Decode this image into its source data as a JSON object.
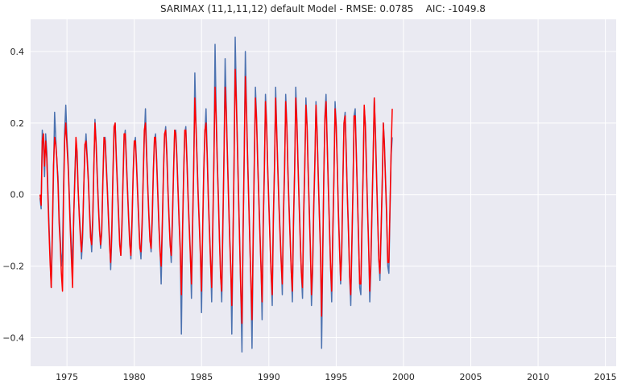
{
  "chart_data": {
    "type": "line",
    "title": "SARIMAX (11,1,11,12) default Model - RMSE: 0.0785    AIC: -1049.8",
    "xlabel": "",
    "ylabel": "",
    "xlim": [
      1972.3,
      2015.8
    ],
    "ylim": [
      -0.48,
      0.49
    ],
    "x_ticks": [
      1975,
      1980,
      1985,
      1990,
      1995,
      2000,
      2005,
      2010,
      2015
    ],
    "x_tick_labels": [
      "1975",
      "1980",
      "1985",
      "1990",
      "1995",
      "2000",
      "2005",
      "2010",
      "2015"
    ],
    "y_ticks": [
      -0.4,
      -0.2,
      0.0,
      0.2,
      0.4
    ],
    "y_tick_labels": [
      "−0.4",
      "−0.2",
      "0.0",
      "0.2",
      "0.4"
    ],
    "grid": true,
    "legend": "none",
    "background": "#eaeaf2",
    "x_start": 1973.0,
    "x_step": 0.08333,
    "series": [
      {
        "color": "#4c72b0",
        "values": [
          -0.01,
          -0.04,
          0.18,
          0.14,
          0.05,
          0.17,
          0.12,
          0.02,
          -0.08,
          -0.17,
          -0.26,
          -0.12,
          0.05,
          0.23,
          0.16,
          0.09,
          0.05,
          -0.06,
          -0.12,
          -0.2,
          -0.16,
          0.02,
          0.18,
          0.25,
          0.16,
          0.1,
          0.01,
          -0.08,
          -0.14,
          -0.2,
          -0.07,
          0.06,
          0.14,
          0.09,
          0.01,
          -0.05,
          -0.1,
          -0.18,
          -0.12,
          0.02,
          0.12,
          0.17,
          0.11,
          0.05,
          -0.03,
          -0.1,
          -0.16,
          -0.08,
          0.07,
          0.21,
          0.15,
          0.06,
          -0.02,
          -0.09,
          -0.15,
          -0.11,
          0.03,
          0.14,
          0.16,
          0.09,
          0.02,
          -0.06,
          -0.12,
          -0.21,
          -0.12,
          0.05,
          0.17,
          0.2,
          0.11,
          0.03,
          -0.05,
          -0.13,
          -0.17,
          -0.1,
          0.04,
          0.15,
          0.18,
          0.1,
          0.02,
          -0.06,
          -0.12,
          -0.18,
          -0.09,
          0.05,
          0.14,
          0.16,
          0.09,
          0.01,
          -0.07,
          -0.14,
          -0.18,
          -0.1,
          0.04,
          0.16,
          0.24,
          0.12,
          0.03,
          -0.05,
          -0.12,
          -0.16,
          -0.08,
          0.06,
          0.15,
          0.17,
          0.1,
          0.01,
          -0.08,
          -0.15,
          -0.25,
          -0.1,
          0.05,
          0.16,
          0.19,
          0.12,
          0.02,
          -0.06,
          -0.13,
          -0.19,
          -0.09,
          0.05,
          0.17,
          0.18,
          0.11,
          0.02,
          -0.07,
          -0.15,
          -0.39,
          -0.12,
          0.05,
          0.17,
          0.19,
          0.1,
          0.0,
          -0.08,
          -0.16,
          -0.29,
          -0.1,
          0.07,
          0.34,
          0.2,
          0.1,
          0.0,
          -0.08,
          -0.16,
          -0.33,
          -0.11,
          0.06,
          0.17,
          0.24,
          0.12,
          0.0,
          -0.09,
          -0.18,
          -0.3,
          -0.1,
          0.09,
          0.42,
          0.24,
          0.1,
          0.0,
          -0.12,
          -0.22,
          -0.3,
          -0.1,
          0.1,
          0.38,
          0.25,
          0.12,
          0.0,
          -0.11,
          -0.2,
          -0.39,
          -0.15,
          0.08,
          0.44,
          0.28,
          0.14,
          0.0,
          -0.13,
          -0.28,
          -0.44,
          -0.12,
          0.1,
          0.4,
          0.26,
          0.12,
          0.0,
          -0.12,
          -0.25,
          -0.43,
          -0.15,
          0.08,
          0.3,
          0.22,
          0.1,
          0.0,
          -0.1,
          -0.2,
          -0.35,
          -0.1,
          0.06,
          0.28,
          0.2,
          0.08,
          -0.02,
          -0.12,
          -0.22,
          -0.31,
          -0.08,
          0.07,
          0.3,
          0.18,
          0.08,
          -0.02,
          -0.1,
          -0.18,
          -0.28,
          -0.07,
          0.06,
          0.28,
          0.2,
          0.07,
          -0.03,
          -0.12,
          -0.22,
          -0.3,
          -0.09,
          0.06,
          0.3,
          0.21,
          0.09,
          -0.02,
          -0.12,
          -0.22,
          -0.29,
          -0.07,
          0.07,
          0.27,
          0.2,
          0.08,
          -0.03,
          -0.14,
          -0.31,
          -0.22,
          -0.05,
          0.08,
          0.26,
          0.18,
          0.06,
          -0.05,
          -0.15,
          -0.43,
          -0.18,
          0.04,
          0.22,
          0.28,
          0.15,
          0.03,
          -0.08,
          -0.2,
          -0.3,
          -0.12,
          0.04,
          0.26,
          0.2,
          0.08,
          -0.04,
          -0.14,
          -0.25,
          -0.17,
          0.03,
          0.2,
          0.23,
          0.12,
          0.0,
          -0.1,
          -0.23,
          -0.31,
          -0.15,
          0.02,
          0.22,
          0.24,
          0.12,
          0.0,
          -0.12,
          -0.26,
          -0.28,
          -0.1,
          0.05,
          0.24,
          0.2,
          0.08,
          -0.04,
          -0.14,
          -0.3,
          -0.2,
          -0.05,
          0.1,
          0.27,
          0.18,
          0.06,
          -0.06,
          -0.18,
          -0.24,
          -0.12,
          0.02,
          0.2,
          0.15,
          0.05,
          -0.05,
          -0.2,
          -0.22,
          -0.05,
          0.11,
          0.16
        ]
      },
      {
        "color": "#ff0000",
        "values": [
          0.0,
          -0.03,
          0.15,
          0.17,
          0.08,
          0.15,
          0.1,
          0.0,
          -0.1,
          -0.19,
          -0.26,
          -0.1,
          0.08,
          0.16,
          0.14,
          0.1,
          0.03,
          -0.08,
          -0.14,
          -0.22,
          -0.27,
          0.0,
          0.15,
          0.2,
          0.14,
          0.08,
          0.0,
          -0.1,
          -0.18,
          -0.26,
          -0.06,
          0.04,
          0.16,
          0.12,
          0.02,
          -0.06,
          -0.12,
          -0.16,
          -0.1,
          0.02,
          0.14,
          0.15,
          0.1,
          0.04,
          -0.04,
          -0.12,
          -0.14,
          -0.06,
          0.08,
          0.2,
          0.14,
          0.05,
          -0.03,
          -0.1,
          -0.14,
          -0.1,
          0.04,
          0.16,
          0.15,
          0.08,
          0.01,
          -0.07,
          -0.14,
          -0.19,
          -0.1,
          0.06,
          0.19,
          0.2,
          0.1,
          0.02,
          -0.06,
          -0.14,
          -0.17,
          -0.08,
          0.05,
          0.17,
          0.17,
          0.09,
          0.01,
          -0.07,
          -0.14,
          -0.17,
          -0.07,
          0.06,
          0.15,
          0.15,
          0.08,
          0.0,
          -0.08,
          -0.15,
          -0.16,
          -0.08,
          0.05,
          0.18,
          0.2,
          0.11,
          0.02,
          -0.06,
          -0.13,
          -0.15,
          -0.06,
          0.07,
          0.16,
          0.16,
          0.09,
          0.0,
          -0.09,
          -0.16,
          -0.2,
          -0.08,
          0.06,
          0.17,
          0.18,
          0.11,
          0.01,
          -0.07,
          -0.14,
          -0.17,
          -0.07,
          0.06,
          0.18,
          0.17,
          0.1,
          0.01,
          -0.08,
          -0.16,
          -0.28,
          -0.1,
          0.06,
          0.18,
          0.18,
          0.09,
          -0.01,
          -0.09,
          -0.17,
          -0.25,
          -0.08,
          0.08,
          0.27,
          0.19,
          0.09,
          -0.01,
          -0.09,
          -0.17,
          -0.27,
          -0.09,
          0.07,
          0.18,
          0.2,
          0.11,
          -0.01,
          -0.1,
          -0.19,
          -0.26,
          -0.08,
          0.1,
          0.3,
          0.22,
          0.09,
          -0.01,
          -0.13,
          -0.23,
          -0.27,
          -0.08,
          0.11,
          0.3,
          0.23,
          0.11,
          -0.01,
          -0.12,
          -0.21,
          -0.31,
          -0.13,
          0.09,
          0.35,
          0.26,
          0.13,
          -0.01,
          -0.14,
          -0.27,
          -0.36,
          -0.1,
          0.11,
          0.33,
          0.24,
          0.11,
          -0.01,
          -0.13,
          -0.24,
          -0.35,
          -0.12,
          0.09,
          0.27,
          0.21,
          0.09,
          -0.01,
          -0.11,
          -0.21,
          -0.3,
          -0.08,
          0.07,
          0.26,
          0.19,
          0.07,
          -0.03,
          -0.13,
          -0.22,
          -0.28,
          -0.06,
          0.08,
          0.27,
          0.17,
          0.07,
          -0.03,
          -0.11,
          -0.19,
          -0.25,
          -0.05,
          0.07,
          0.26,
          0.19,
          0.06,
          -0.04,
          -0.13,
          -0.22,
          -0.27,
          -0.07,
          0.07,
          0.27,
          0.2,
          0.08,
          -0.03,
          -0.13,
          -0.22,
          -0.26,
          -0.05,
          0.08,
          0.25,
          0.19,
          0.07,
          -0.04,
          -0.15,
          -0.28,
          -0.2,
          -0.03,
          0.09,
          0.25,
          0.17,
          0.05,
          -0.06,
          -0.16,
          -0.34,
          -0.16,
          0.05,
          0.21,
          0.26,
          0.14,
          0.02,
          -0.09,
          -0.2,
          -0.27,
          -0.1,
          0.05,
          0.24,
          0.19,
          0.07,
          -0.05,
          -0.15,
          -0.24,
          -0.15,
          0.04,
          0.2,
          0.22,
          0.11,
          -0.01,
          -0.11,
          -0.23,
          -0.28,
          -0.13,
          0.03,
          0.22,
          0.22,
          0.11,
          -0.01,
          -0.13,
          -0.25,
          -0.25,
          -0.08,
          0.06,
          0.25,
          0.19,
          0.07,
          -0.05,
          -0.15,
          -0.27,
          -0.18,
          -0.03,
          0.11,
          0.27,
          0.17,
          0.05,
          -0.07,
          -0.18,
          -0.22,
          -0.1,
          0.03,
          0.2,
          0.14,
          0.04,
          -0.06,
          -0.19,
          -0.19,
          -0.03,
          0.12,
          0.24
        ]
      }
    ]
  }
}
